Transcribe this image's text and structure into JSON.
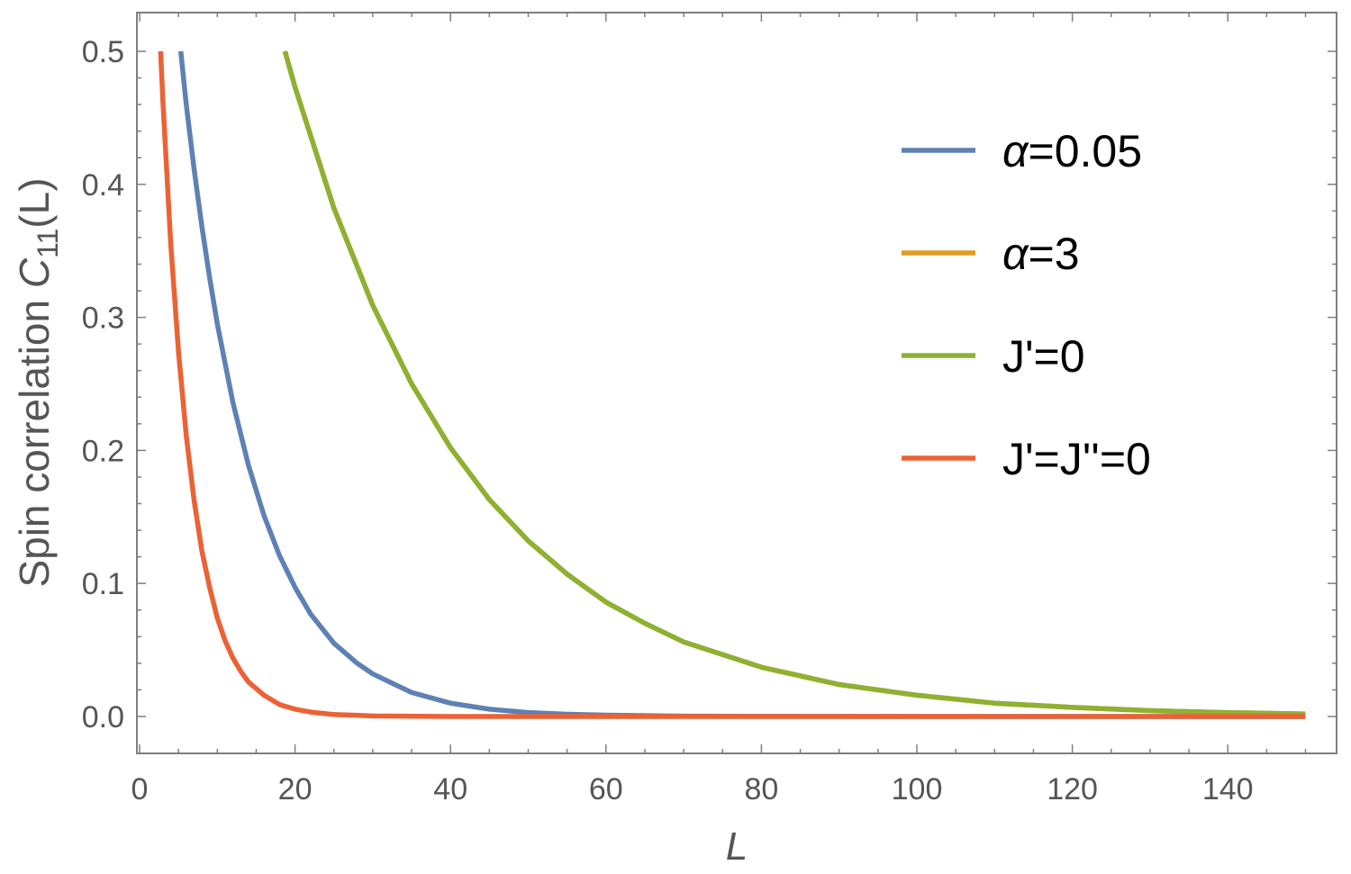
{
  "chart_data": {
    "type": "line",
    "title": "",
    "xlabel": "L",
    "ylabel": {
      "prefix": "Spin correlation ",
      "symbol": "C",
      "subscript": "11",
      "suffix": "(L)"
    },
    "xlim": [
      0,
      150
    ],
    "ylim": [
      0,
      0.5
    ],
    "x_ticks": [
      0,
      20,
      40,
      60,
      80,
      100,
      120,
      140
    ],
    "y_ticks": [
      0.0,
      0.1,
      0.2,
      0.3,
      0.4,
      0.5
    ],
    "y_tick_labels": [
      "0.0",
      "0.1",
      "0.2",
      "0.3",
      "0.4",
      "0.5"
    ],
    "grid": false,
    "legend_position": "top-right",
    "series": [
      {
        "name": "α=0.05",
        "color": "#5e81b5",
        "x": [
          5.3,
          6,
          7,
          8,
          9,
          10,
          12,
          14,
          16,
          18,
          20,
          22,
          25,
          28,
          30,
          35,
          40,
          45,
          50,
          55,
          60,
          70,
          80,
          100,
          120,
          150
        ],
        "y": [
          0.5,
          0.46,
          0.412,
          0.369,
          0.33,
          0.295,
          0.236,
          0.189,
          0.151,
          0.121,
          0.097,
          0.077,
          0.055,
          0.04,
          0.032,
          0.018,
          0.01,
          0.0055,
          0.003,
          0.0017,
          0.001,
          0.0003,
          0.0001,
          0.0,
          0.0,
          0.0
        ]
      },
      {
        "name": "α=3",
        "color": "#e19c24",
        "x": [
          18.7,
          20,
          25,
          30,
          35,
          40,
          45,
          50,
          55,
          60,
          65,
          70,
          80,
          90,
          100,
          110,
          120,
          130,
          140,
          150
        ],
        "y": [
          0.5,
          0.473,
          0.382,
          0.309,
          0.25,
          0.202,
          0.163,
          0.132,
          0.107,
          0.086,
          0.07,
          0.056,
          0.037,
          0.024,
          0.016,
          0.01,
          0.0068,
          0.0044,
          0.0029,
          0.0019
        ]
      },
      {
        "name": "J'=0",
        "color": "#8fb032",
        "x": [
          18.7,
          20,
          25,
          30,
          35,
          40,
          45,
          50,
          55,
          60,
          65,
          70,
          80,
          90,
          100,
          110,
          120,
          130,
          140,
          150
        ],
        "y": [
          0.5,
          0.473,
          0.382,
          0.309,
          0.25,
          0.202,
          0.163,
          0.132,
          0.107,
          0.086,
          0.07,
          0.056,
          0.037,
          0.024,
          0.016,
          0.01,
          0.0068,
          0.0044,
          0.0029,
          0.0019
        ]
      },
      {
        "name": "J'=J''=0",
        "color": "#eb6235",
        "x": [
          2.7,
          3,
          4,
          5,
          6,
          7,
          8,
          9,
          10,
          11,
          12,
          13,
          14,
          16,
          18,
          20,
          22,
          25,
          30,
          40,
          60,
          100,
          150
        ],
        "y": [
          0.5,
          0.462,
          0.356,
          0.274,
          0.211,
          0.163,
          0.125,
          0.097,
          0.074,
          0.057,
          0.044,
          0.034,
          0.026,
          0.016,
          0.009,
          0.0055,
          0.0033,
          0.0015,
          0.0004,
          0.0,
          0.0,
          0.0,
          0.0
        ]
      }
    ]
  }
}
